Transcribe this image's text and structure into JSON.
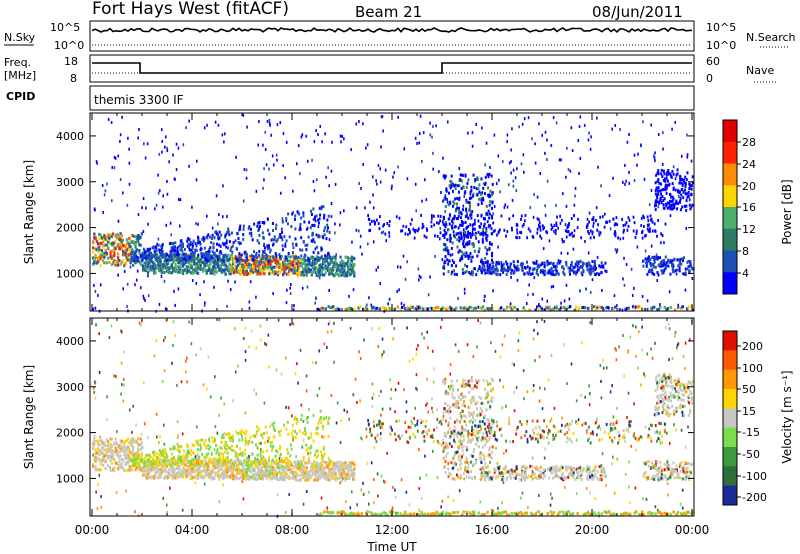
{
  "header": {
    "station": "Fort Hays West (fitACF)",
    "beam": "Beam 21",
    "date": "08/Jun/2011"
  },
  "panels": {
    "nsky_label": "N.Sky",
    "nsearch_label": "N.Search",
    "freq_label_1": "Freq.",
    "freq_label_2": "[MHz]",
    "nave_label": "Nave",
    "cpid_label": "CPID",
    "cpid_value": "themis 3300 IF",
    "noise_ticks_left": [
      "10^5",
      "10^0"
    ],
    "noise_ticks_right": [
      "10^5",
      "10^0"
    ],
    "freq_ticks": [
      "18",
      "8"
    ],
    "nave_ticks": [
      "60",
      "0"
    ]
  },
  "chart_data": [
    {
      "type": "heatmap",
      "name": "power",
      "ylabel": "Slant Range [km]",
      "xlabel": "Time UT",
      "x_ticks": [
        "00:00",
        "04:00",
        "08:00",
        "12:00",
        "16:00",
        "20:00",
        "00:00"
      ],
      "x_range_hours": [
        0,
        24
      ],
      "y_ticks": [
        1000,
        2000,
        3000,
        4000
      ],
      "y_range_km": [
        180,
        4500
      ],
      "colorbar_label": "Power [dB]",
      "colorbar_ticks": [
        "28",
        "24",
        "20",
        "16",
        "12",
        "8",
        "4"
      ],
      "colors": [
        "#0000ff",
        "#1e4fb5",
        "#2e7d62",
        "#4caf6d",
        "#ffd400",
        "#ff8c00",
        "#ff2200",
        "#e00000"
      ]
    },
    {
      "type": "heatmap",
      "name": "velocity",
      "ylabel": "Slant Range [km]",
      "xlabel": "Time UT",
      "x_ticks": [
        "00:00",
        "04:00",
        "08:00",
        "12:00",
        "16:00",
        "20:00",
        "00:00"
      ],
      "x_range_hours": [
        0,
        24
      ],
      "y_ticks": [
        1000,
        2000,
        3000,
        4000
      ],
      "y_range_km": [
        180,
        4500
      ],
      "colorbar_label": "Velocity [m s⁻¹]",
      "colorbar_ticks": [
        "200",
        "100",
        "50",
        "15",
        "-15",
        "-50",
        "-100",
        "-200"
      ],
      "colors": [
        "#1a2a9a",
        "#2e6e3a",
        "#3c9a3c",
        "#7ddc4a",
        "#c8c8c0",
        "#ffd400",
        "#ff9a00",
        "#ff5a00",
        "#e01000"
      ],
      "ground_scatter_color": "#c8c8c0"
    }
  ],
  "time_axis_label": "Time UT"
}
